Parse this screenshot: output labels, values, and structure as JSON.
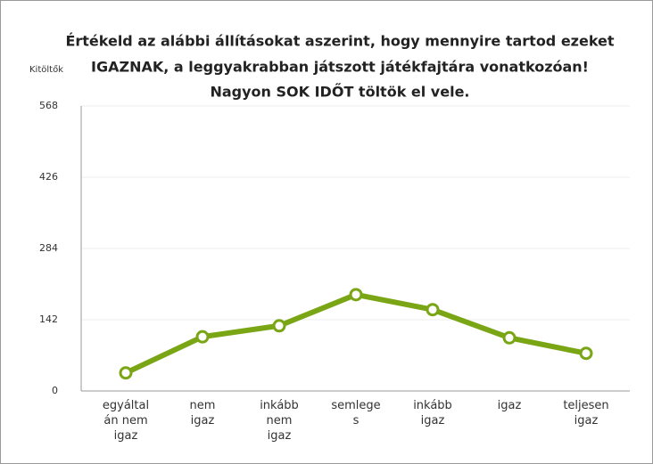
{
  "chart_data": {
    "type": "line",
    "title": [
      "Értékeld az alábbi állításokat aszerint, hogy mennyire tartod ezeket",
      "IGAZNAK, a leggyakrabban játszott játékfajtára vonatkozóan!",
      "Nagyon SOK IDŐT töltök el vele."
    ],
    "ylabel": "Kitöltők",
    "categories": [
      "egyáltalán nem igaz",
      "nem igaz",
      "inkább nem igaz",
      "semleges",
      "inkább igaz",
      "igaz",
      "teljesen igaz"
    ],
    "series": [
      {
        "name": "Kitöltők",
        "color": "#7aa616",
        "values": [
          36,
          108,
          130,
          192,
          162,
          106,
          75
        ]
      }
    ],
    "ylim": [
      0,
      568
    ],
    "yticks": [
      0,
      142,
      284,
      426,
      568
    ],
    "grid": true
  }
}
